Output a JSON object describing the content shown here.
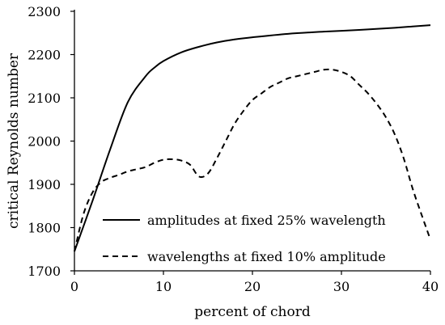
{
  "chart_data": {
    "type": "line",
    "title": "",
    "xlabel": "percent of chord",
    "ylabel": "critical Reynolds number",
    "xlim": [
      0,
      40
    ],
    "ylim": [
      1700,
      2300
    ],
    "xticks": [
      0,
      10,
      20,
      30,
      40
    ],
    "yticks": [
      1700,
      1800,
      1900,
      2000,
      2100,
      2200,
      2300
    ],
    "grid": false,
    "legend_position": "bottom-right",
    "series": [
      {
        "name": "amplitudes at fixed 25% wavelength",
        "style": "solid",
        "color": "#000000",
        "x": [
          0,
          2,
          4,
          6,
          8,
          9,
          10,
          12,
          14,
          16,
          18,
          20,
          24,
          28,
          32,
          36,
          40
        ],
        "y": [
          1745,
          1860,
          1980,
          2090,
          2150,
          2170,
          2185,
          2205,
          2218,
          2228,
          2235,
          2240,
          2248,
          2253,
          2257,
          2262,
          2268
        ]
      },
      {
        "name": "wavelengths at fixed 10% amplitude",
        "style": "dashed",
        "color": "#000000",
        "x": [
          0,
          1,
          2,
          3,
          4,
          5,
          6,
          7,
          8,
          9,
          10,
          11,
          12,
          13,
          14,
          15,
          16,
          17,
          18,
          19,
          20,
          21,
          22,
          23,
          24,
          25,
          26,
          27,
          28,
          29,
          30,
          31,
          32,
          33,
          34,
          35,
          36,
          37,
          38,
          39,
          40
        ],
        "y": [
          1745,
          1830,
          1880,
          1905,
          1915,
          1922,
          1930,
          1935,
          1940,
          1950,
          1957,
          1958,
          1955,
          1945,
          1918,
          1925,
          1960,
          2000,
          2040,
          2070,
          2095,
          2110,
          2125,
          2135,
          2145,
          2150,
          2155,
          2160,
          2165,
          2165,
          2160,
          2150,
          2130,
          2110,
          2085,
          2055,
          2015,
          1960,
          1890,
          1830,
          1772
        ]
      }
    ]
  }
}
